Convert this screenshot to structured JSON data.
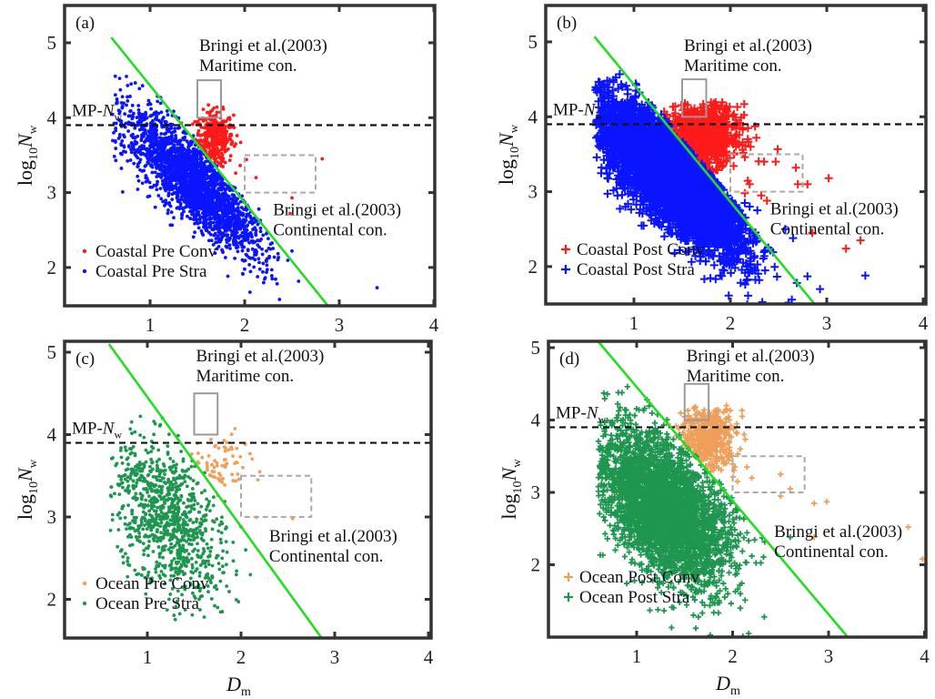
{
  "chart_data": [
    {
      "type": "scatter",
      "panel_label": "(a)",
      "xlabel": "",
      "ylabel_main": "log",
      "ylabel_sub": "10",
      "ylabel_var": "N",
      "ylabel_var_sub": "w",
      "xlim": [
        0.1,
        4.0
      ],
      "ylim": [
        1.5,
        5.5
      ],
      "xticks": [
        1,
        2,
        3,
        4
      ],
      "yticks": [
        2,
        3,
        4,
        5
      ],
      "marker": "dot",
      "mp_nw_label": "MP-",
      "mp_nw_var": "N",
      "mp_nw_sub": "w",
      "mp_nw_value": 3.9,
      "maritime_label_1": "Bringi et al.(2003)",
      "maritime_label_2": "Maritime con.",
      "continental_label_1": "Bringi et al.(2003)",
      "continental_label_2": "Continental con.",
      "maritime_box": {
        "x": [
          1.5,
          1.75
        ],
        "y": [
          4.0,
          4.5
        ]
      },
      "continental_box": {
        "x": [
          2.0,
          2.75
        ],
        "y": [
          3.0,
          3.5
        ]
      },
      "separator_line": {
        "x": [
          0.59,
          2.88
        ],
        "y": [
          5.07,
          1.49
        ]
      },
      "legend_position": "bottom-left",
      "series": [
        {
          "name": "Coastal Pre Conv",
          "color": "#ff1a1a",
          "cluster": {
            "cx": 1.68,
            "cy": 3.72,
            "sx": 0.1,
            "sy": 0.18,
            "rot": 0,
            "n": 380
          },
          "outliers": [
            [
              2.82,
              3.45
            ],
            [
              2.5,
              2.93
            ],
            [
              2.12,
              3.2
            ],
            [
              2.02,
              3.44
            ],
            [
              1.92,
              3.76
            ],
            [
              2.48,
              2.72
            ]
          ]
        },
        {
          "name": "Coastal Pre Stra",
          "color": "#0a14ff",
          "cluster": {
            "cx": 1.45,
            "cy": 3.15,
            "sx": 0.55,
            "sy": 0.17,
            "rot": -0.95,
            "n": 2400
          },
          "outliers": [
            [
              0.75,
              4.55
            ],
            [
              0.8,
              4.45
            ],
            [
              2.15,
              2.78
            ],
            [
              2.23,
              2.45
            ],
            [
              2.12,
              2.17
            ],
            [
              2.23,
              2.22
            ],
            [
              2.5,
              2.22
            ],
            [
              3.4,
              1.73
            ],
            [
              1.98,
              2.9
            ],
            [
              2.04,
              2.7
            ]
          ]
        }
      ]
    },
    {
      "type": "scatter",
      "panel_label": "(b)",
      "xlabel": "",
      "ylabel_main": "log",
      "ylabel_sub": "10",
      "ylabel_var": "N",
      "ylabel_var_sub": "w",
      "xlim": [
        0.1,
        4.0
      ],
      "ylim": [
        1.5,
        5.5
      ],
      "xticks": [
        1,
        2,
        3,
        4
      ],
      "yticks": [
        2,
        3,
        4,
        5
      ],
      "marker": "plus",
      "mp_nw_label": "MP-",
      "mp_nw_var": "N",
      "mp_nw_sub": "w",
      "mp_nw_value": 3.9,
      "maritime_label_1": "Bringi et al.(2003)",
      "maritime_label_2": "Maritime con.",
      "continental_label_1": "Bringi et al.(2003)",
      "continental_label_2": "Continental con.",
      "maritime_box": {
        "x": [
          1.5,
          1.75
        ],
        "y": [
          4.0,
          4.5
        ]
      },
      "continental_box": {
        "x": [
          2.0,
          2.75
        ],
        "y": [
          3.0,
          3.5
        ]
      },
      "separator_line": {
        "x": [
          0.59,
          2.88
        ],
        "y": [
          5.07,
          1.49
        ]
      },
      "legend_position": "bottom-left",
      "series": [
        {
          "name": "Coastal Post Conv",
          "color": "#ff1a1a",
          "cluster": {
            "cx": 1.72,
            "cy": 3.75,
            "sx": 0.18,
            "sy": 0.2,
            "rot": 0,
            "n": 700
          },
          "outliers": [
            [
              2.27,
              3.72
            ],
            [
              2.35,
              3.4
            ],
            [
              2.47,
              3.4
            ],
            [
              2.68,
              3.32
            ],
            [
              2.7,
              3.1
            ],
            [
              2.8,
              3.1
            ],
            [
              3.02,
              3.18
            ],
            [
              2.2,
              3.1
            ],
            [
              2.15,
              2.98
            ],
            [
              2.32,
              2.95
            ],
            [
              2.38,
              2.88
            ],
            [
              2.85,
              2.45
            ],
            [
              3.2,
              2.24
            ],
            [
              3.35,
              2.35
            ]
          ]
        },
        {
          "name": "Coastal Post Stra",
          "color": "#0a14ff",
          "cluster": {
            "cx": 1.38,
            "cy": 3.2,
            "sx": 0.58,
            "sy": 0.2,
            "rot": -0.95,
            "n": 4500
          },
          "outliers": [
            [
              0.88,
              4.4
            ],
            [
              0.78,
              4.35
            ],
            [
              2.15,
              2.85
            ],
            [
              2.2,
              2.8
            ],
            [
              2.12,
              2.6
            ],
            [
              2.28,
              2.75
            ],
            [
              2.57,
              2.5
            ],
            [
              2.65,
              2.38
            ],
            [
              2.8,
              1.87
            ],
            [
              2.93,
              1.7
            ],
            [
              3.4,
              1.88
            ]
          ]
        }
      ]
    },
    {
      "type": "scatter",
      "panel_label": "(c)",
      "xlabel_var": "D",
      "xlabel_sub": "m",
      "ylabel_main": "log",
      "ylabel_sub": "10",
      "ylabel_var": "N",
      "ylabel_var_sub": "w",
      "xlim": [
        0.1,
        4.0
      ],
      "ylim": [
        1.5,
        5.1
      ],
      "xticks": [
        1,
        2,
        3,
        4
      ],
      "yticks": [
        2,
        3,
        4,
        5
      ],
      "marker": "dot",
      "mp_nw_label": "MP-",
      "mp_nw_var": "N",
      "mp_nw_sub": "w",
      "mp_nw_value": 3.9,
      "maritime_label_1": "Bringi et al.(2003)",
      "maritime_label_2": "Maritime con.",
      "continental_label_1": "Bringi et al.(2003)",
      "continental_label_2": "Continental con.",
      "maritime_box": {
        "x": [
          1.5,
          1.75
        ],
        "y": [
          4.0,
          4.5
        ]
      },
      "continental_box": {
        "x": [
          2.0,
          2.75
        ],
        "y": [
          3.0,
          3.5
        ]
      },
      "separator_line": {
        "x": [
          0.59,
          2.88
        ],
        "y": [
          5.1,
          1.5
        ]
      },
      "legend_position": "bottom-left",
      "series": [
        {
          "name": "Ocean Pre Conv",
          "color": "#ef9f5a",
          "cluster": {
            "cx": 1.78,
            "cy": 3.6,
            "sx": 0.15,
            "sy": 0.2,
            "rot": 0,
            "n": 70
          },
          "outliers": [
            [
              2.55,
              2.98
            ],
            [
              2.18,
              3.45
            ],
            [
              2.2,
              3.55
            ]
          ]
        },
        {
          "name": "Ocean Pre Stra",
          "color": "#1f9650",
          "cluster": {
            "cx": 1.2,
            "cy": 3.0,
            "sx": 0.5,
            "sy": 0.25,
            "rot": -1.2,
            "n": 950
          },
          "outliers": [
            [
              0.78,
              3.7
            ],
            [
              0.75,
              3.5
            ],
            [
              2.05,
              2.6
            ],
            [
              2.1,
              2.3
            ],
            [
              1.95,
              2.3
            ],
            [
              1.8,
              1.85
            ],
            [
              1.75,
              1.9
            ],
            [
              2.0,
              2.88
            ]
          ]
        }
      ]
    },
    {
      "type": "scatter",
      "panel_label": "(d)",
      "xlabel_var": "D",
      "xlabel_sub": "m",
      "ylabel_main": "log",
      "ylabel_sub": "10",
      "ylabel_var": "N",
      "ylabel_var_sub": "w",
      "xlim": [
        0.1,
        4.0
      ],
      "ylim": [
        1.0,
        5.1
      ],
      "xticks": [
        1,
        2,
        3,
        4
      ],
      "yticks": [
        2,
        3,
        4,
        5
      ],
      "marker": "plus",
      "mp_nw_label": "MP-",
      "mp_nw_var": "N",
      "mp_nw_sub": "w",
      "mp_nw_value": 3.9,
      "maritime_label_1": "Bringi et al.(2003)",
      "maritime_label_2": "Maritime con.",
      "continental_label_1": "Bringi et al.(2003)",
      "continental_label_2": "Continental con.",
      "maritime_box": {
        "x": [
          1.5,
          1.75
        ],
        "y": [
          4.0,
          4.5
        ]
      },
      "continental_box": {
        "x": [
          2.0,
          2.75
        ],
        "y": [
          3.0,
          3.5
        ]
      },
      "separator_line": {
        "x": [
          0.59,
          3.2
        ],
        "y": [
          5.1,
          1.0
        ]
      },
      "legend_position": "bottom-left",
      "series": [
        {
          "name": "Ocean Post Conv",
          "color": "#ef9f5a",
          "cluster": {
            "cx": 1.75,
            "cy": 3.75,
            "sx": 0.14,
            "sy": 0.22,
            "rot": 0,
            "n": 420
          },
          "outliers": [
            [
              2.1,
              4.05
            ],
            [
              2.12,
              3.8
            ],
            [
              2.08,
              3.6
            ],
            [
              2.15,
              3.35
            ],
            [
              2.2,
              3.2
            ],
            [
              2.05,
              3.15
            ],
            [
              2.5,
              3.25
            ],
            [
              2.6,
              3.05
            ],
            [
              2.5,
              2.95
            ],
            [
              2.85,
              2.85
            ],
            [
              2.98,
              2.87
            ],
            [
              3.83,
              2.52
            ],
            [
              3.98,
              2.08
            ],
            [
              2.85,
              2.38
            ]
          ]
        },
        {
          "name": "Ocean Post Stra",
          "color": "#1f9650",
          "cluster": {
            "cx": 1.28,
            "cy": 2.8,
            "sx": 0.55,
            "sy": 0.28,
            "rot": -1.15,
            "n": 3200
          },
          "outliers": [
            [
              0.62,
              3.97
            ],
            [
              0.75,
              3.95
            ],
            [
              0.7,
              3.5
            ],
            [
              2.05,
              2.75
            ],
            [
              2.2,
              2.12
            ],
            [
              2.08,
              1.6
            ],
            [
              2.08,
              1.4
            ],
            [
              1.95,
              1.6
            ],
            [
              2.6,
              2.38
            ]
          ]
        }
      ]
    }
  ]
}
